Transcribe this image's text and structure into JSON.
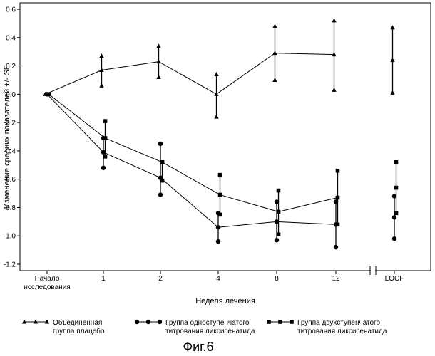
{
  "figure": {
    "caption": "Фиг.6"
  },
  "chart_data": {
    "type": "line",
    "title": "",
    "xlabel": "Неделя лечения",
    "ylabel": "Изменение средних показателей +/- SE",
    "ylim": [
      -1.2,
      0.6
    ],
    "yticks": [
      "0.6",
      "0.4",
      "0.2",
      "0.0",
      "-0.2",
      "-0.4",
      "-0.6",
      "-0.8",
      "-1.0",
      "-1.2"
    ],
    "categories": [
      {
        "label": [
          "Начало",
          "исследования"
        ]
      },
      {
        "label": [
          "1"
        ]
      },
      {
        "label": [
          "2"
        ]
      },
      {
        "label": [
          "4"
        ]
      },
      {
        "label": [
          "8"
        ]
      },
      {
        "label": [
          "12"
        ]
      },
      {
        "label": [
          "LOCF"
        ]
      }
    ],
    "axis_break_after_index": 5,
    "series": [
      {
        "name": "Объединенная группа плацебо",
        "marker": "triangle",
        "values": [
          0.0,
          0.17,
          0.23,
          0.0,
          0.29,
          0.28,
          0.24
        ],
        "lower": [
          0.0,
          0.06,
          0.12,
          -0.16,
          0.1,
          0.03,
          0.01
        ],
        "upper": [
          0.0,
          0.27,
          0.34,
          0.14,
          0.48,
          0.52,
          0.47
        ],
        "connected": [
          true,
          true,
          true,
          true,
          true,
          true,
          false
        ]
      },
      {
        "name": "Группа одноступенчатого титрования ликсисенатида",
        "marker": "circle",
        "values": [
          0.0,
          -0.41,
          -0.59,
          -0.94,
          -0.9,
          -0.92,
          -0.87
        ],
        "lower": [
          0.0,
          -0.52,
          -0.71,
          -1.04,
          -1.03,
          -1.08,
          -1.02
        ],
        "upper": [
          0.0,
          -0.31,
          -0.35,
          -0.84,
          -0.76,
          -0.76,
          -0.72
        ],
        "connected": [
          true,
          true,
          true,
          true,
          true,
          true,
          false
        ]
      },
      {
        "name": "Группа двухступенчатого титрования ликсисенатида",
        "marker": "square",
        "values": [
          0.0,
          -0.31,
          -0.48,
          -0.71,
          -0.83,
          -0.73,
          -0.66
        ],
        "lower": [
          0.0,
          -0.44,
          -0.61,
          -0.85,
          -0.99,
          -0.92,
          -0.84
        ],
        "upper": [
          0.0,
          -0.19,
          -0.48,
          -0.57,
          -0.68,
          -0.54,
          -0.48
        ],
        "connected": [
          true,
          true,
          true,
          true,
          true,
          true,
          false
        ]
      }
    ],
    "legend": {
      "placement": "bottom",
      "entries": [
        [
          "Объединенная",
          "группа плацебо"
        ],
        [
          "Группа одноступенчатого",
          "титрования ликсисенатида"
        ],
        [
          "Группа двухступенчатого",
          "титрования ликсисенатида"
        ]
      ]
    }
  }
}
